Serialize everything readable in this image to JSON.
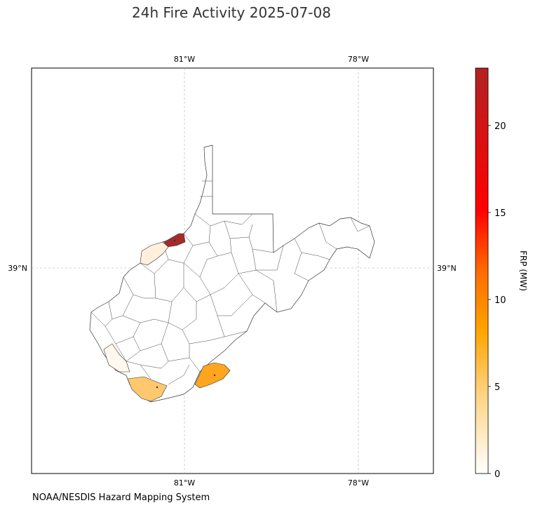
{
  "title": "24h Fire Activity 2025-07-08",
  "credit": "NOAA/NESDIS Hazard Mapping System",
  "map": {
    "region": "West Virginia",
    "gridlines": {
      "longitudes": [
        "81°W",
        "78°W"
      ],
      "latitudes": [
        "39°N"
      ]
    },
    "highlighted_counties": [
      {
        "name": "county-northwest-ohio-river",
        "frp_mw": 23,
        "color": "#A52A2A"
      },
      {
        "name": "county-wood-area",
        "frp_mw": 1,
        "color": "#FFF0DC"
      },
      {
        "name": "county-southwest-border",
        "frp_mw": 0.5,
        "color": "#FFF8EE"
      },
      {
        "name": "county-southern",
        "frp_mw": 5,
        "color": "#FFC86E"
      },
      {
        "name": "county-southeast",
        "frp_mw": 7.5,
        "color": "#FFA51E"
      }
    ]
  },
  "colorbar": {
    "label": "FRP (MW)",
    "ticks": [
      "0",
      "5",
      "10",
      "15",
      "20"
    ],
    "min": 0,
    "max": 23.3,
    "colors": [
      "#FFFFFF",
      "#FFD27F",
      "#FFA500",
      "#FF6A00",
      "#FF0000",
      "#B22222"
    ]
  }
}
